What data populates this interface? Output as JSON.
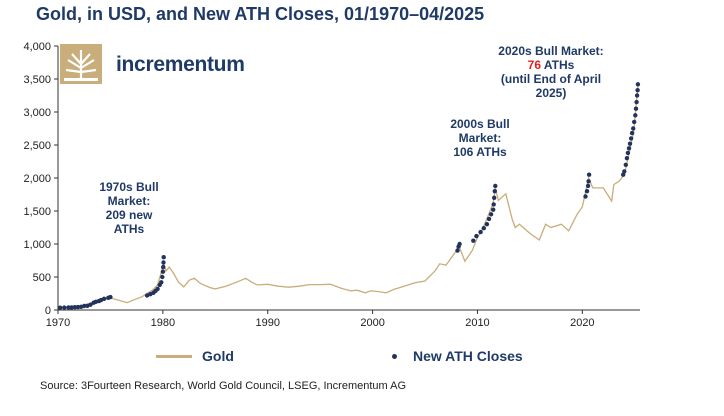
{
  "title": "Gold, in USD, and New ATH Closes, 01/1970–04/2025",
  "logo": {
    "brand": "incrementum",
    "icon": "tree-logo-icon"
  },
  "annotations": {
    "bull_1970s": [
      "1970s Bull",
      "Market:",
      "209 new",
      "ATHs"
    ],
    "bull_2000s": [
      "2000s Bull",
      "Market:",
      "106 ATHs"
    ],
    "bull_2020s": {
      "line1": "2020s Bull Market:",
      "count": "76",
      "line2_suffix": " ATHs",
      "line3": "(until End of April",
      "line4": "2025)"
    }
  },
  "legend": {
    "gold_label": "Gold",
    "ath_label": "New ATH Closes"
  },
  "source": "Source: 3Fourteen Research, World Gold Council, LSEG, Incrementum AG",
  "colors": {
    "gold_line": "#c9ad7a",
    "ath_dot": "#22335c",
    "title": "#1f3a66",
    "highlight": "#e02020"
  },
  "chart_data": {
    "type": "line",
    "title": "Gold, in USD, and New ATH Closes, 01/1970–04/2025",
    "xlabel": "",
    "ylabel": "",
    "xlim": [
      1970,
      2025.5
    ],
    "ylim": [
      0,
      4000
    ],
    "x_ticks": [
      1970,
      1980,
      1990,
      2000,
      2010,
      2020
    ],
    "y_ticks": [
      0,
      500,
      1000,
      1500,
      2000,
      2500,
      3000,
      3500,
      4000
    ],
    "y_tick_labels": [
      "0",
      "500",
      "1,000",
      "1,500",
      "2,000",
      "2,500",
      "3,000",
      "3,500",
      "4,000"
    ],
    "series": [
      {
        "name": "Gold",
        "type": "line",
        "x": [
          1970.0,
          1971.0,
          1972.0,
          1973.0,
          1973.5,
          1974.0,
          1974.9,
          1975.5,
          1976.6,
          1977.0,
          1978.0,
          1979.0,
          1979.5,
          1979.9,
          1980.05,
          1980.3,
          1980.6,
          1981.0,
          1981.5,
          1982.0,
          1982.5,
          1983.0,
          1983.6,
          1984.5,
          1985.0,
          1986.0,
          1987.0,
          1987.9,
          1988.5,
          1989.0,
          1990.0,
          1991.0,
          1992.0,
          1993.0,
          1994.0,
          1995.0,
          1996.0,
          1997.0,
          1997.9,
          1998.5,
          1999.3,
          1999.8,
          2000.5,
          2001.3,
          2002.0,
          2003.0,
          2004.0,
          2005.0,
          2006.0,
          2006.4,
          2007.0,
          2008.0,
          2008.2,
          2008.8,
          2009.5,
          2010.0,
          2010.5,
          2011.0,
          2011.5,
          2011.7,
          2012.0,
          2012.7,
          2013.3,
          2013.6,
          2014.0,
          2015.0,
          2015.9,
          2016.5,
          2017.0,
          2018.0,
          2018.7,
          2019.5,
          2020.0,
          2020.6,
          2021.0,
          2022.0,
          2022.8,
          2023.0,
          2023.5,
          2024.0,
          2024.5,
          2024.9,
          2025.3
        ],
        "y": [
          35,
          38,
          58,
          97,
          120,
          150,
          185,
          160,
          110,
          140,
          200,
          300,
          380,
          600,
          720,
          590,
          650,
          560,
          420,
          350,
          450,
          480,
          400,
          340,
          320,
          360,
          420,
          480,
          420,
          380,
          390,
          360,
          345,
          360,
          385,
          385,
          390,
          330,
          290,
          300,
          260,
          290,
          280,
          260,
          310,
          360,
          410,
          440,
          600,
          700,
          680,
          900,
          980,
          740,
          900,
          1100,
          1230,
          1420,
          1620,
          1850,
          1660,
          1760,
          1380,
          1250,
          1300,
          1160,
          1060,
          1300,
          1250,
          1300,
          1200,
          1450,
          1560,
          2000,
          1850,
          1850,
          1650,
          1900,
          1950,
          2050,
          2400,
          2700,
          3400
        ]
      },
      {
        "name": "New ATH Closes",
        "type": "scatter",
        "points": [
          [
            1970.2,
            35
          ],
          [
            1970.6,
            37
          ],
          [
            1971.0,
            38
          ],
          [
            1971.3,
            40
          ],
          [
            1971.6,
            42
          ],
          [
            1971.9,
            44
          ],
          [
            1972.2,
            48
          ],
          [
            1972.5,
            60
          ],
          [
            1972.8,
            64
          ],
          [
            1973.1,
            80
          ],
          [
            1973.4,
            110
          ],
          [
            1973.6,
            125
          ],
          [
            1973.9,
            135
          ],
          [
            1974.1,
            150
          ],
          [
            1974.4,
            170
          ],
          [
            1974.8,
            185
          ],
          [
            1975.0,
            195
          ],
          [
            1978.5,
            220
          ],
          [
            1978.8,
            240
          ],
          [
            1979.1,
            260
          ],
          [
            1979.3,
            290
          ],
          [
            1979.5,
            320
          ],
          [
            1979.7,
            380
          ],
          [
            1979.85,
            420
          ],
          [
            1979.95,
            500
          ],
          [
            1980.0,
            580
          ],
          [
            1980.03,
            650
          ],
          [
            1980.06,
            720
          ],
          [
            1980.08,
            800
          ],
          [
            2008.1,
            900
          ],
          [
            2008.2,
            960
          ],
          [
            2008.3,
            1000
          ],
          [
            2009.6,
            1050
          ],
          [
            2009.9,
            1120
          ],
          [
            2010.3,
            1180
          ],
          [
            2010.6,
            1240
          ],
          [
            2010.9,
            1300
          ],
          [
            2011.1,
            1380
          ],
          [
            2011.3,
            1450
          ],
          [
            2011.5,
            1520
          ],
          [
            2011.55,
            1600
          ],
          [
            2011.6,
            1700
          ],
          [
            2011.65,
            1800
          ],
          [
            2011.7,
            1880
          ],
          [
            2020.3,
            1720
          ],
          [
            2020.45,
            1800
          ],
          [
            2020.55,
            1880
          ],
          [
            2020.6,
            1950
          ],
          [
            2020.65,
            2050
          ],
          [
            2023.9,
            2050
          ],
          [
            2024.0,
            2100
          ],
          [
            2024.15,
            2200
          ],
          [
            2024.25,
            2300
          ],
          [
            2024.35,
            2380
          ],
          [
            2024.45,
            2450
          ],
          [
            2024.55,
            2520
          ],
          [
            2024.65,
            2600
          ],
          [
            2024.75,
            2680
          ],
          [
            2024.85,
            2750
          ],
          [
            2024.95,
            2850
          ],
          [
            2025.05,
            2950
          ],
          [
            2025.12,
            3050
          ],
          [
            2025.18,
            3150
          ],
          [
            2025.22,
            3250
          ],
          [
            2025.27,
            3330
          ],
          [
            2025.3,
            3420
          ]
        ]
      }
    ]
  }
}
